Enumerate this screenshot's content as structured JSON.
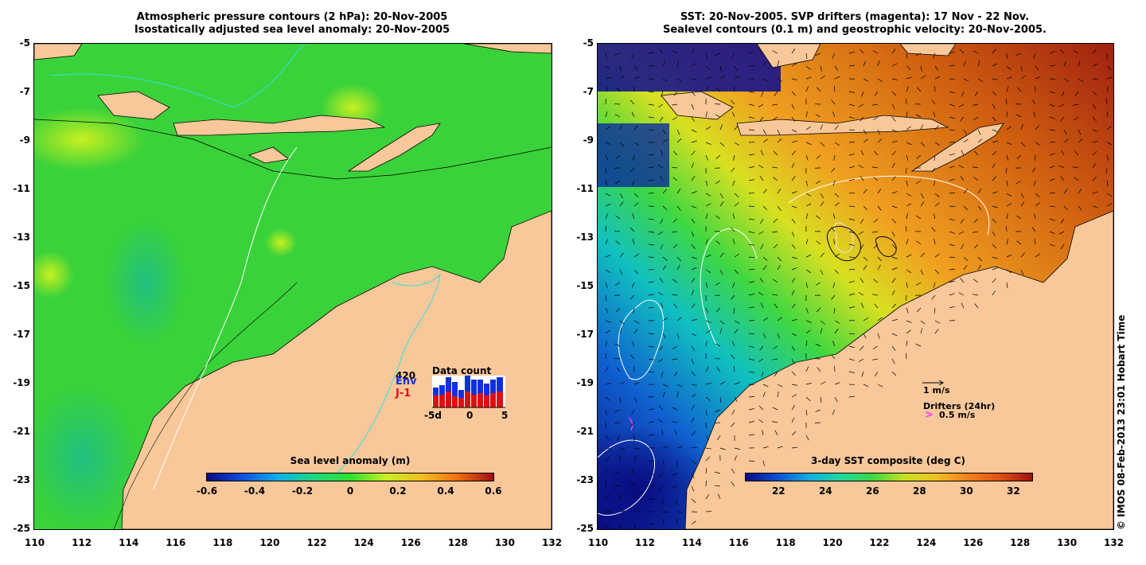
{
  "left_map": {
    "title_line1": "Atmospheric pressure contours (2 hPa): 20-Nov-2005",
    "title_line2": "Isostatically adjusted sea level anomaly: 20-Nov-2005",
    "colorbar": {
      "title": "Sea level anomaly (m)",
      "ticks": [
        "-0.6",
        "-0.4",
        "-0.2",
        "0",
        "0.2",
        "0.4",
        "0.6"
      ],
      "range": [
        -0.6,
        0.6
      ]
    },
    "data_count": {
      "title": "Data count",
      "max_label": "420",
      "env_label": "Env",
      "j1_label": "J-1",
      "x_ticks": [
        "-5d",
        "0",
        "5"
      ],
      "env_color": "#1030e0",
      "j1_color": "#e01010"
    }
  },
  "right_map": {
    "title_line1": "SST: 20-Nov-2005. SVP drifters (magenta): 17 Nov - 22 Nov.",
    "title_line2": "Sealevel contours (0.1 m) and geostrophic velocity: 20-Nov-2005.",
    "colorbar": {
      "title": "3-day SST composite (deg C)",
      "ticks": [
        "22",
        "24",
        "26",
        "28",
        "30",
        "32"
      ],
      "range": [
        20.6,
        32.8
      ]
    },
    "legend": {
      "velocity_label": "1 m/s",
      "drifters_label": "Drifters (24hr)",
      "drifter_speed_label": "0.5 m/s"
    }
  },
  "axes": {
    "lon_ticks": [
      "110",
      "112",
      "114",
      "116",
      "118",
      "120",
      "122",
      "124",
      "126",
      "128",
      "130",
      "132"
    ],
    "lat_ticks": [
      "-5",
      "-7",
      "-9",
      "-11",
      "-13",
      "-15",
      "-17",
      "-19",
      "-21",
      "-23",
      "-25"
    ],
    "lon_range": [
      110,
      132
    ],
    "lat_range": [
      -25,
      -5
    ]
  },
  "copyright": "© IMOS 08-Feb-2013 23:01 Hobart Time",
  "colors": {
    "land": "#f8c89a",
    "ocean_left": "#3ad23a",
    "ocean_right": "#e69a2a",
    "cyan_contour": "#30e0e0",
    "drifter": "#ff30ff"
  }
}
